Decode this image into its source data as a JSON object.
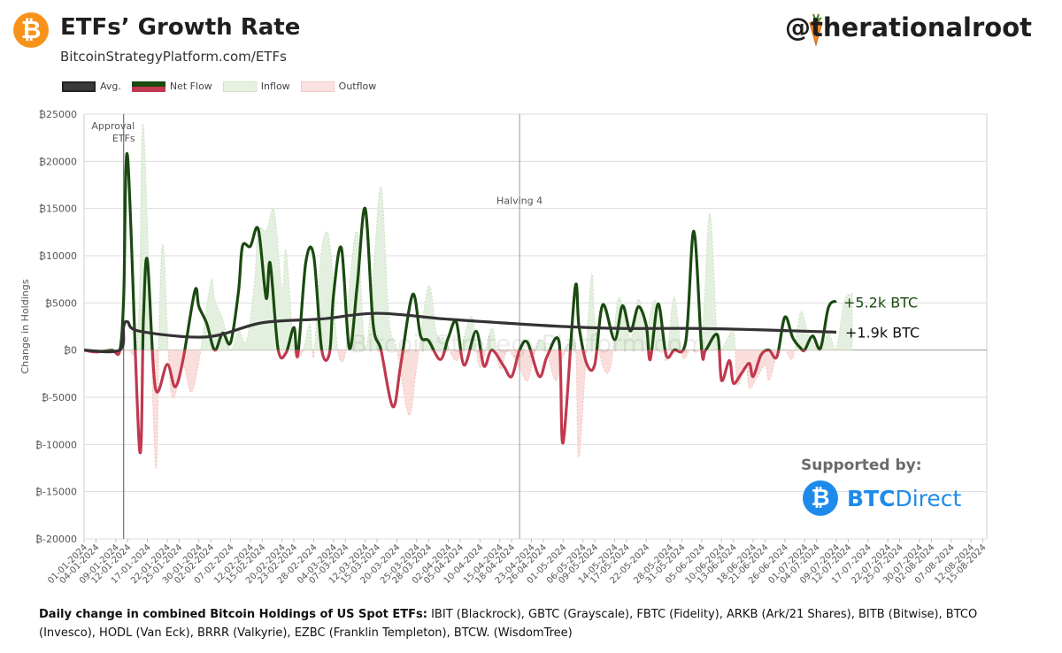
{
  "header": {
    "title": "ETFs’ Growth Rate",
    "subtitle": "BitcoinStrategyPlatform.com/ETFs",
    "logo_glyph": "₿",
    "handle": "@therationalroot",
    "handle_icon": "carrot-icon"
  },
  "legend": {
    "avg": "Avg.",
    "net": "Net Flow",
    "inflow": "Inflow",
    "outflow": "Outflow"
  },
  "sponsor": {
    "label": "Supported by:",
    "brand_prefix": "BTC",
    "brand_suffix": "Direct",
    "icon": "btc-direct-logo-icon"
  },
  "footer": {
    "bold": "Daily change in combined Bitcoin Holdings of US Spot ETFs:",
    "text": " IBIT (Blackrock), GBTC (Grayscale), FBTC (Fidelity), ARKB (Ark/21 Shares), BITB (Bitwise), BTCO (Invesco), HODL (Van Eck), BRRR (Valkyrie), EZBC (Franklin Templeton), BTCW. (WisdomTree)"
  },
  "colors": {
    "net_positive": "#1a4a10",
    "net_negative": "#c0394e",
    "inflow_fill": "#e4f0df",
    "outflow_fill": "#fadedb",
    "avg": "#333333",
    "accent_btc": "#f7931a",
    "sponsor_blue": "#1e8bea"
  },
  "chart_data": {
    "type": "line",
    "ylabel": "Change in Holdings",
    "watermark": "BitcoinStrategyPlatform.com",
    "ylim": [
      -20000,
      25000
    ],
    "y_ticks": [
      "₿25000",
      "₿20000",
      "₿15000",
      "₿10000",
      "₿5000",
      "₿0",
      "₿-5000",
      "₿-10000",
      "₿-15000",
      "₿-20000"
    ],
    "x_ticks": [
      "01-01-2024",
      "04-01-2024",
      "09-01-2024",
      "12-01-2024",
      "17-01-2024",
      "22-01-2024",
      "25-01-2024",
      "30-01-2024",
      "02-02-2024",
      "07-02-2024",
      "12-02-2024",
      "15-02-2024",
      "20-02-2024",
      "23-02-2024",
      "28-02-2024",
      "04-03-2024",
      "07-03-2024",
      "12-03-2024",
      "15-03-2024",
      "20-03-2024",
      "25-03-2024",
      "28-03-2024",
      "02-04-2024",
      "05-04-2024",
      "10-04-2024",
      "15-04-2024",
      "18-04-2024",
      "23-04-2024",
      "26-04-2024",
      "01-05-2024",
      "06-05-2024",
      "09-05-2024",
      "14-05-2024",
      "17-05-2024",
      "22-05-2024",
      "28-05-2024",
      "31-05-2024",
      "05-06-2024",
      "10-06-2024",
      "13-06-2024",
      "18-06-2024",
      "21-06-2024",
      "26-06-2024",
      "01-07-2024",
      "04-07-2024",
      "09-07-2024",
      "12-07-2024",
      "17-07-2024",
      "22-07-2024",
      "25-07-2024",
      "30-07-2024",
      "02-08-2024",
      "07-08-2024",
      "12-08-2024",
      "15-08-2024"
    ],
    "annotations": [
      {
        "label": "Approval ETFs",
        "x": "11-01-2024"
      },
      {
        "label": "Halving 4",
        "x": "20-04-2024"
      }
    ],
    "end_labels": {
      "net": "+5.2k BTC",
      "avg": "+1.9k BTC"
    },
    "series": [
      {
        "name": "Net Flow",
        "x": [
          "01-01-2024",
          "04-01-2024",
          "08-01-2024",
          "10-01-2024",
          "11-01-2024",
          "12-01-2024",
          "15-01-2024",
          "16-01-2024",
          "17-01-2024",
          "19-01-2024",
          "22-01-2024",
          "24-01-2024",
          "26-01-2024",
          "29-01-2024",
          "30-01-2024",
          "01-02-2024",
          "03-02-2024",
          "05-02-2024",
          "07-02-2024",
          "09-02-2024",
          "10-02-2024",
          "12-02-2024",
          "14-02-2024",
          "16-02-2024",
          "17-02-2024",
          "19-02-2024",
          "21-02-2024",
          "23-02-2024",
          "24-02-2024",
          "26-02-2024",
          "28-02-2024",
          "01-03-2024",
          "03-03-2024",
          "04-03-2024",
          "06-03-2024",
          "08-03-2024",
          "10-03-2024",
          "12-03-2024",
          "14-03-2024",
          "16-03-2024",
          "19-03-2024",
          "21-03-2024",
          "24-03-2024",
          "26-03-2024",
          "28-03-2024",
          "31-03-2024",
          "02-04-2024",
          "04-04-2024",
          "06-04-2024",
          "09-04-2024",
          "11-04-2024",
          "13-04-2024",
          "16-04-2024",
          "18-04-2024",
          "20-04-2024",
          "22-04-2024",
          "25-04-2024",
          "27-04-2024",
          "30-04-2024",
          "01-05-2024",
          "04-05-2024",
          "05-05-2024",
          "07-05-2024",
          "09-05-2024",
          "11-05-2024",
          "14-05-2024",
          "16-05-2024",
          "18-05-2024",
          "20-05-2024",
          "22-05-2024",
          "23-05-2024",
          "25-05-2024",
          "27-05-2024",
          "29-05-2024",
          "01-06-2024",
          "03-06-2024",
          "05-06-2024",
          "06-06-2024",
          "09-06-2024",
          "10-06-2024",
          "12-06-2024",
          "13-06-2024",
          "15-06-2024",
          "17-06-2024",
          "18-06-2024",
          "20-06-2024",
          "22-06-2024",
          "24-06-2024",
          "26-06-2024",
          "28-06-2024",
          "30-06-2024",
          "01-07-2024",
          "03-07-2024",
          "05-07-2024",
          "07-07-2024",
          "09-07-2024"
        ],
        "values": [
          0,
          -200,
          0,
          -100,
          5500,
          20500,
          -10500,
          3500,
          9500,
          -4000,
          -1500,
          -3900,
          -1000,
          6300,
          4600,
          2800,
          0,
          1800,
          800,
          6200,
          11000,
          11000,
          12800,
          5500,
          9200,
          100,
          -300,
          2400,
          -500,
          9300,
          10000,
          100,
          -300,
          5800,
          10800,
          200,
          6900,
          15000,
          2800,
          0,
          -6000,
          -1500,
          5900,
          1500,
          1000,
          -1000,
          1300,
          3000,
          -1600,
          2000,
          -1700,
          0,
          -1700,
          -2800,
          0,
          800,
          -2800,
          -600,
          800,
          -9800,
          6500,
          2500,
          -1500,
          -1500,
          4800,
          1100,
          4700,
          2000,
          4600,
          2600,
          -1000,
          4900,
          -500,
          0,
          1000,
          12600,
          0,
          0,
          1600,
          -3200,
          -1100,
          -3500,
          -2500,
          -1400,
          -2800,
          -500,
          0,
          -700,
          3500,
          1300,
          200,
          0,
          1500,
          200,
          4500,
          5200
        ]
      },
      {
        "name": "Avg.",
        "x": [
          "01-01-2024",
          "10-01-2024",
          "11-01-2024",
          "12-01-2024",
          "15-01-2024",
          "01-02-2024",
          "15-02-2024",
          "01-03-2024",
          "15-03-2024",
          "01-04-2024",
          "15-04-2024",
          "01-05-2024",
          "15-05-2024",
          "01-06-2024",
          "15-06-2024",
          "01-07-2024",
          "09-07-2024"
        ],
        "values": [
          0,
          0,
          2500,
          3000,
          2000,
          1400,
          2900,
          3300,
          3900,
          3300,
          2900,
          2500,
          2300,
          2300,
          2200,
          2000,
          1900
        ]
      }
    ],
    "grid": true,
    "legend_position": "top-left"
  }
}
